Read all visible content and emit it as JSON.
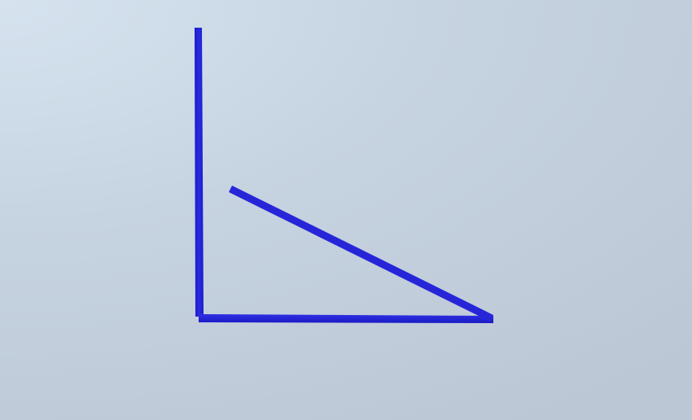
{
  "scene": {
    "background_color": "#c3cfdd",
    "line_color": "#2424d6",
    "shape": "right-angle figure with separate diagonal segment"
  }
}
